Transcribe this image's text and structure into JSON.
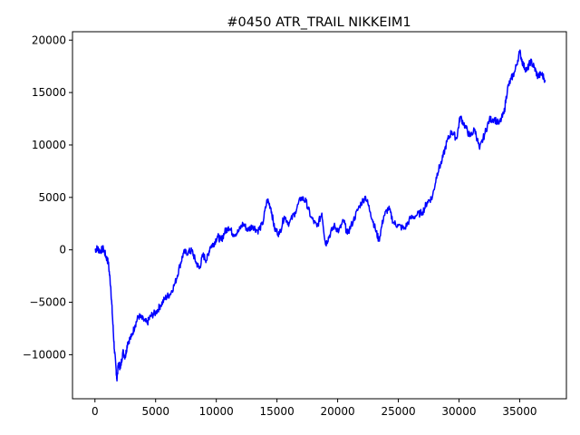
{
  "chart_data": {
    "type": "line",
    "title": "#0450 ATR_TRAIL NIKKEIM1",
    "xlabel": "",
    "ylabel": "",
    "xlim": [
      -1850,
      38850
    ],
    "ylim": [
      -14200,
      20800
    ],
    "xticks": [
      0,
      5000,
      10000,
      15000,
      20000,
      25000,
      30000,
      35000
    ],
    "yticks": [
      -10000,
      -5000,
      0,
      5000,
      10000,
      15000,
      20000
    ],
    "grid": false,
    "legend": "none",
    "series": [
      {
        "color": "#0000ff",
        "points": [
          [
            0,
            0
          ],
          [
            200,
            150
          ],
          [
            400,
            -100
          ],
          [
            700,
            100
          ],
          [
            900,
            -600
          ],
          [
            1100,
            -1200
          ],
          [
            1300,
            -3500
          ],
          [
            1450,
            -6500
          ],
          [
            1600,
            -9500
          ],
          [
            1750,
            -11500
          ],
          [
            1800,
            -12300
          ],
          [
            1950,
            -10800
          ],
          [
            2100,
            -11300
          ],
          [
            2300,
            -9700
          ],
          [
            2500,
            -10200
          ],
          [
            2700,
            -8800
          ],
          [
            3000,
            -8300
          ],
          [
            3300,
            -7200
          ],
          [
            3600,
            -6300
          ],
          [
            4000,
            -6700
          ],
          [
            4300,
            -7000
          ],
          [
            4600,
            -6300
          ],
          [
            5000,
            -6000
          ],
          [
            5400,
            -5300
          ],
          [
            5800,
            -4600
          ],
          [
            6200,
            -4200
          ],
          [
            6600,
            -3200
          ],
          [
            7000,
            -1500
          ],
          [
            7300,
            -300
          ],
          [
            7700,
            -200
          ],
          [
            8000,
            -100
          ],
          [
            8300,
            -1100
          ],
          [
            8600,
            -1800
          ],
          [
            8900,
            -500
          ],
          [
            9200,
            -1000
          ],
          [
            9500,
            300
          ],
          [
            9800,
            600
          ],
          [
            10100,
            1300
          ],
          [
            10400,
            900
          ],
          [
            10700,
            1700
          ],
          [
            11000,
            2200
          ],
          [
            11400,
            1500
          ],
          [
            11800,
            1700
          ],
          [
            12200,
            2500
          ],
          [
            12600,
            1900
          ],
          [
            13000,
            2300
          ],
          [
            13400,
            1800
          ],
          [
            13800,
            2400
          ],
          [
            14200,
            4800
          ],
          [
            14500,
            4000
          ],
          [
            14800,
            2000
          ],
          [
            15200,
            1500
          ],
          [
            15600,
            3200
          ],
          [
            16000,
            2500
          ],
          [
            16500,
            3600
          ],
          [
            17000,
            5000
          ],
          [
            17400,
            4600
          ],
          [
            17800,
            3100
          ],
          [
            18300,
            2200
          ],
          [
            18700,
            3500
          ],
          [
            19000,
            500
          ],
          [
            19300,
            1300
          ],
          [
            19700,
            2300
          ],
          [
            20100,
            1800
          ],
          [
            20500,
            2800
          ],
          [
            20800,
            1500
          ],
          [
            21300,
            2800
          ],
          [
            21800,
            4200
          ],
          [
            22300,
            5100
          ],
          [
            22700,
            3600
          ],
          [
            23100,
            2000
          ],
          [
            23400,
            900
          ],
          [
            23800,
            3200
          ],
          [
            24200,
            4000
          ],
          [
            24600,
            2600
          ],
          [
            25000,
            2300
          ],
          [
            25500,
            2000
          ],
          [
            26000,
            3000
          ],
          [
            26500,
            3300
          ],
          [
            27000,
            3600
          ],
          [
            27400,
            4600
          ],
          [
            27800,
            5000
          ],
          [
            28200,
            7300
          ],
          [
            28600,
            8500
          ],
          [
            29000,
            10300
          ],
          [
            29400,
            11300
          ],
          [
            29800,
            10600
          ],
          [
            30100,
            12700
          ],
          [
            30500,
            11800
          ],
          [
            30900,
            10800
          ],
          [
            31300,
            11500
          ],
          [
            31700,
            9600
          ],
          [
            32100,
            11000
          ],
          [
            32500,
            12400
          ],
          [
            32900,
            12500
          ],
          [
            33300,
            12000
          ],
          [
            33700,
            13000
          ],
          [
            34000,
            15400
          ],
          [
            34300,
            16300
          ],
          [
            34600,
            17000
          ],
          [
            35000,
            18900
          ],
          [
            35300,
            17600
          ],
          [
            35600,
            17100
          ],
          [
            35900,
            18000
          ],
          [
            36200,
            17400
          ],
          [
            36500,
            16500
          ],
          [
            36800,
            16800
          ],
          [
            37100,
            16200
          ]
        ]
      }
    ]
  }
}
